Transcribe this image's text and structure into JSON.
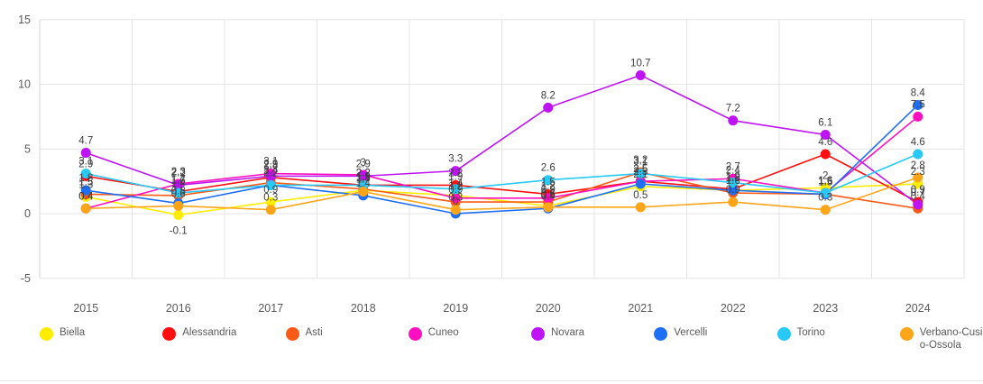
{
  "chart_data": {
    "type": "line",
    "title": "",
    "xlabel": "",
    "ylabel": "",
    "ylim": [
      -5,
      15
    ],
    "y_ticks": [
      15,
      10,
      5,
      0,
      -5
    ],
    "grid": true,
    "legend_position": "bottom",
    "point_labels": true,
    "categories": [
      "2015",
      "2016",
      "2017",
      "2018",
      "2019",
      "2020",
      "2021",
      "2022",
      "2023",
      "2024"
    ],
    "series": [
      {
        "name": "Biella",
        "color": "#FFED00",
        "values": [
          1.3,
          -0.1,
          0.9,
          1.8,
          1.4,
          0.6,
          2.1,
          1.8,
          2.0,
          2.3
        ]
      },
      {
        "name": "Alessandria",
        "color": "#FF1010",
        "values": [
          2.9,
          1.7,
          2.8,
          2.2,
          2.2,
          1.5,
          2.5,
          1.9,
          4.6,
          0.9
        ]
      },
      {
        "name": "Asti",
        "color": "#FB5A16",
        "values": [
          1.5,
          1.4,
          2.4,
          1.9,
          0.9,
          0.9,
          3.2,
          1.6,
          1.5,
          0.4
        ]
      },
      {
        "name": "Cuneo",
        "color": "#FF0FC0",
        "values": [
          0.4,
          2.3,
          3.1,
          3.0,
          1.2,
          1.2,
          2.5,
          2.7,
          1.6,
          7.5
        ]
      },
      {
        "name": "Novara",
        "color": "#BE14F5",
        "values": [
          4.7,
          2.2,
          2.9,
          2.9,
          3.3,
          8.2,
          10.7,
          7.2,
          6.1,
          0.7
        ]
      },
      {
        "name": "Vercelli",
        "color": "#1E6FF5",
        "values": [
          1.8,
          0.8,
          2.2,
          1.4,
          0.0,
          0.4,
          2.3,
          1.8,
          1.5,
          8.4
        ]
      },
      {
        "name": "Torino",
        "color": "#28C9F7",
        "values": [
          3.1,
          1.6,
          2.2,
          2.2,
          1.9,
          2.6,
          3.1,
          2.4,
          1.6,
          4.6
        ]
      },
      {
        "name": "Verbano-Cusio-Ossola",
        "color": "#FCA519",
        "values": [
          0.4,
          0.6,
          0.3,
          1.7,
          0.3,
          0.5,
          0.5,
          0.9,
          0.3,
          2.8
        ]
      }
    ]
  },
  "style": {
    "grid_color": "#e4e4e4",
    "axis_color": "#d6d6d6",
    "tick_label_color": "#595959",
    "point_label_color": "#3d3d3d"
  }
}
